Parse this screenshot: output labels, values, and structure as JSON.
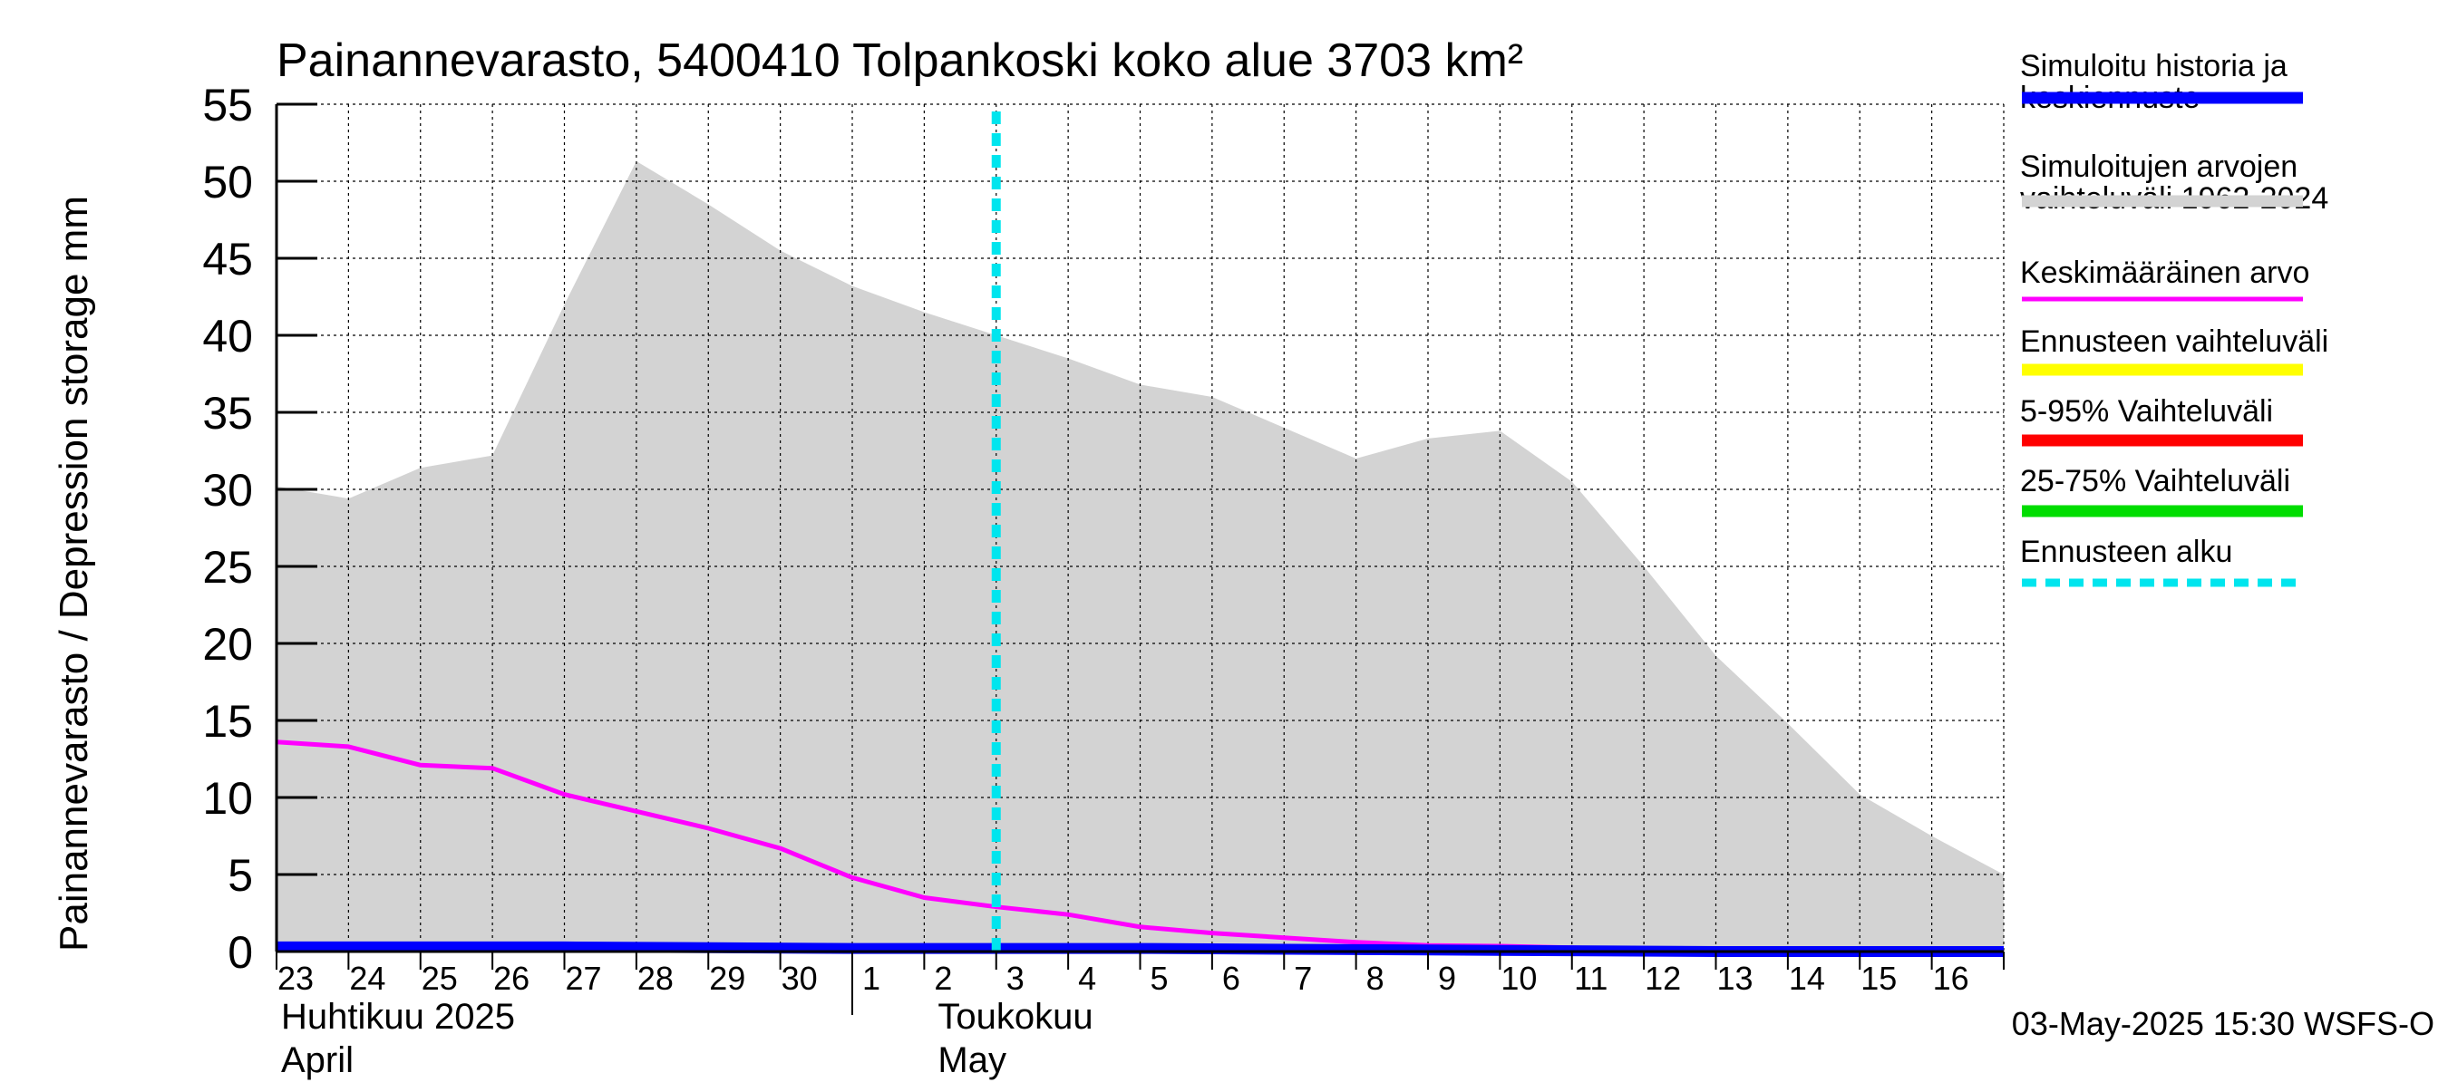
{
  "chart_data": {
    "type": "area",
    "title": "Painannevarasto, 5400410 Tolpankoski koko alue 3703 km²",
    "ylabel": "Painannevarasto / Depression storage    mm",
    "ylim": [
      0,
      55
    ],
    "yticks": [
      0,
      5,
      10,
      15,
      20,
      25,
      30,
      35,
      40,
      45,
      50,
      55
    ],
    "xlim": [
      0,
      24
    ],
    "day_labels": [
      "23",
      "24",
      "25",
      "26",
      "27",
      "28",
      "29",
      "30",
      "1",
      "2",
      "3",
      "4",
      "5",
      "6",
      "7",
      "8",
      "9",
      "10",
      "11",
      "12",
      "13",
      "14",
      "15",
      "16"
    ],
    "month_labels": [
      {
        "line1": "Huhtikuu  2025",
        "line2": "April"
      },
      {
        "line1": "Toukokuu",
        "line2": "May"
      }
    ],
    "month_boundary_x": 8,
    "grid": true,
    "forecast_start_x": 10.0,
    "legend_position": "right",
    "series": [
      {
        "name": "Simuloitujen arvojen vaihteluväli 1962-2024",
        "kind": "band",
        "color": "#d3d3d3",
        "x": [
          0,
          1,
          2,
          3,
          4,
          5,
          6,
          7,
          8,
          9,
          10,
          11,
          12,
          13,
          14,
          15,
          16,
          17,
          18,
          19,
          20,
          21,
          22,
          23,
          24
        ],
        "upper": [
          30.2,
          29.4,
          31.4,
          32.2,
          42.0,
          51.3,
          48.5,
          45.5,
          43.2,
          41.5,
          40.0,
          38.5,
          36.8,
          36.0,
          34.0,
          32.0,
          33.3,
          33.8,
          30.5,
          25.0,
          19.2,
          14.8,
          10.2,
          7.5,
          5.0
        ],
        "lower": [
          0,
          0,
          0,
          0,
          0,
          0,
          0,
          0,
          0,
          0,
          0,
          0,
          0,
          0,
          0,
          0,
          0,
          0,
          0,
          0,
          0,
          0,
          0,
          0,
          0
        ]
      },
      {
        "name": "Keskimääräinen arvo",
        "kind": "line",
        "color": "#ff00ff",
        "x": [
          0,
          1,
          2,
          3,
          4,
          5,
          6,
          7,
          8,
          9,
          10,
          11,
          12,
          13,
          14,
          15,
          16,
          17,
          18,
          19,
          20,
          21,
          22,
          23,
          24
        ],
        "values": [
          13.6,
          13.3,
          12.1,
          11.9,
          10.2,
          9.1,
          8.0,
          6.7,
          4.8,
          3.5,
          2.9,
          2.4,
          1.6,
          1.2,
          0.9,
          0.6,
          0.4,
          0.35,
          0.25,
          0.15,
          0.05,
          0.05,
          0.05,
          0.0,
          0.0
        ]
      },
      {
        "name": "Simuloitu historia ja keskiennuste",
        "kind": "line",
        "color": "#0000ff",
        "x": [
          0,
          4,
          8,
          12,
          16,
          20,
          24
        ],
        "values": [
          0.3,
          0.3,
          0.2,
          0.2,
          0.1,
          0.0,
          0.0
        ]
      },
      {
        "name": "Ennusteen alku",
        "kind": "vline",
        "color": "#00e5ee",
        "x": [
          10.0
        ]
      }
    ],
    "legend": [
      {
        "label": "Simuloitu historia ja keskiennuste",
        "color": "#0000ff",
        "style": "thick"
      },
      {
        "label": "Simuloitujen arvojen vaihteluväli 1962-2024",
        "color": "#d3d3d3",
        "style": "thick"
      },
      {
        "label": "Keskimääräinen arvo",
        "color": "#ff00ff",
        "style": "thin"
      },
      {
        "label": "Ennusteen vaihteluväli",
        "color": "#ffff00",
        "style": "thick"
      },
      {
        "label": "5-95% Vaihteluväli",
        "color": "#ff0000",
        "style": "thick"
      },
      {
        "label": "25-75% Vaihteluväli",
        "color": "#00dd00",
        "style": "thick"
      },
      {
        "label": "Ennusteen alku",
        "color": "#00e5ee",
        "style": "dashed"
      }
    ],
    "footer": "03-May-2025 15:30 WSFS-O"
  }
}
